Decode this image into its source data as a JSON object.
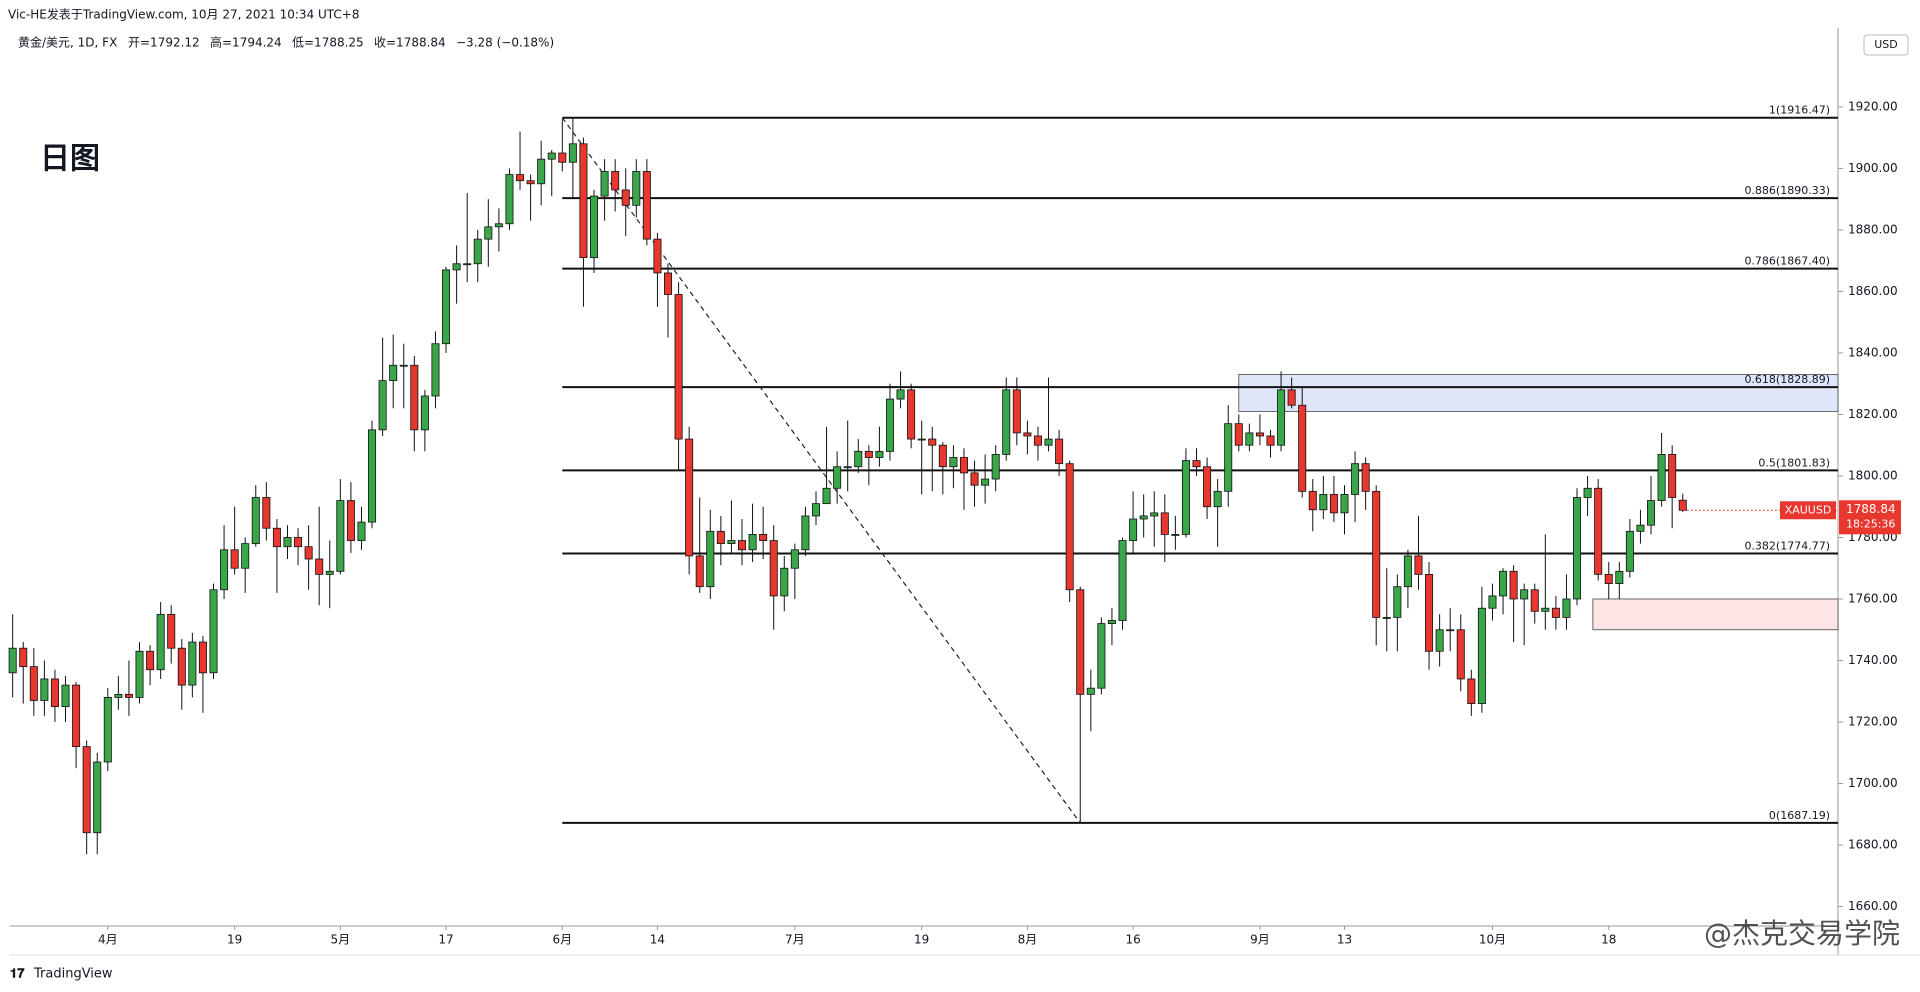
{
  "header": {
    "line1": "Vic-HE发表于TradingView.com, 10月 27, 2021 10:34 UTC+8",
    "symbol": "黄金/美元, 1D, FX",
    "open": "开=1792.12",
    "high": "高=1794.24",
    "low": "低=1788.25",
    "close": "收=1788.84",
    "change": "−3.28 (−0.18%)"
  },
  "chart_data": {
    "type": "candlestick",
    "annotation": "日图",
    "currency": "USD",
    "symbol_tag": "XAUUSD",
    "countdown": "18:25:36",
    "categories": [
      null,
      null,
      null,
      null,
      null,
      null,
      null,
      null,
      null,
      "4月",
      null,
      null,
      null,
      null,
      null,
      null,
      null,
      null,
      null,
      null,
      null,
      "19",
      null,
      null,
      null,
      null,
      null,
      null,
      null,
      null,
      null,
      "5月",
      null,
      null,
      null,
      null,
      null,
      null,
      null,
      null,
      null,
      "17",
      null,
      null,
      null,
      null,
      null,
      null,
      null,
      null,
      null,
      null,
      "6月",
      null,
      null,
      null,
      null,
      null,
      null,
      null,
      null,
      "14",
      null,
      null,
      null,
      null,
      null,
      null,
      null,
      null,
      null,
      null,
      null,
      null,
      "7月",
      null,
      null,
      null,
      null,
      null,
      null,
      null,
      null,
      null,
      null,
      null,
      "19",
      null,
      null,
      null,
      null,
      null,
      null,
      null,
      null,
      null,
      "8月",
      null,
      null,
      null,
      null,
      null,
      null,
      null,
      null,
      null,
      "16",
      null,
      null,
      null,
      null,
      null,
      null,
      null,
      null,
      null,
      null,
      null,
      "9月",
      null,
      null,
      null,
      null,
      null,
      null,
      null,
      "13",
      null,
      null,
      null,
      null,
      null,
      null,
      null,
      null,
      null,
      null,
      null,
      null,
      null,
      "10月",
      null,
      null,
      null,
      null,
      null,
      null,
      null,
      null,
      null,
      null,
      "18",
      null,
      null,
      null,
      null,
      null,
      null,
      null
    ],
    "ohlc": [
      [
        1736,
        1755,
        1728,
        1744
      ],
      [
        1744,
        1746,
        1726,
        1738
      ],
      [
        1738,
        1744,
        1722,
        1727
      ],
      [
        1727,
        1740,
        1722,
        1734
      ],
      [
        1734,
        1737,
        1720,
        1725
      ],
      [
        1725,
        1735,
        1720,
        1732
      ],
      [
        1732,
        1733,
        1705,
        1712
      ],
      [
        1712,
        1714,
        1677,
        1684
      ],
      [
        1684,
        1710,
        1677,
        1707
      ],
      [
        1707,
        1731,
        1704,
        1728
      ],
      [
        1728,
        1735,
        1724,
        1729
      ],
      [
        1729,
        1740,
        1722,
        1728
      ],
      [
        1728,
        1746,
        1726,
        1743
      ],
      [
        1743,
        1745,
        1732,
        1737
      ],
      [
        1737,
        1759,
        1734,
        1755
      ],
      [
        1755,
        1758,
        1739,
        1744
      ],
      [
        1744,
        1747,
        1724,
        1732
      ],
      [
        1732,
        1749,
        1728,
        1746
      ],
      [
        1746,
        1748,
        1723,
        1736
      ],
      [
        1736,
        1765,
        1734,
        1763
      ],
      [
        1763,
        1784,
        1760,
        1776
      ],
      [
        1776,
        1790,
        1768,
        1770
      ],
      [
        1770,
        1780,
        1762,
        1778
      ],
      [
        1778,
        1797,
        1777,
        1793
      ],
      [
        1793,
        1798,
        1779,
        1783
      ],
      [
        1783,
        1786,
        1762,
        1777
      ],
      [
        1777,
        1784,
        1773,
        1780
      ],
      [
        1780,
        1783,
        1771,
        1777
      ],
      [
        1777,
        1784,
        1763,
        1773
      ],
      [
        1773,
        1790,
        1758,
        1768
      ],
      [
        1768,
        1779,
        1757,
        1769
      ],
      [
        1769,
        1799,
        1768,
        1792
      ],
      [
        1792,
        1798,
        1775,
        1779
      ],
      [
        1779,
        1790,
        1776,
        1785
      ],
      [
        1785,
        1818,
        1783,
        1815
      ],
      [
        1815,
        1845,
        1813,
        1831
      ],
      [
        1831,
        1846,
        1822,
        1836
      ],
      [
        1836,
        1843,
        1822,
        1836
      ],
      [
        1836,
        1839,
        1808,
        1815
      ],
      [
        1815,
        1828,
        1808,
        1826
      ],
      [
        1826,
        1847,
        1822,
        1843
      ],
      [
        1843,
        1868,
        1840,
        1867
      ],
      [
        1867,
        1875,
        1856,
        1869
      ],
      [
        1869,
        1892,
        1863,
        1869
      ],
      [
        1869,
        1880,
        1863,
        1877
      ],
      [
        1877,
        1890,
        1868,
        1881
      ],
      [
        1881,
        1887,
        1873,
        1882
      ],
      [
        1882,
        1900,
        1880,
        1898
      ],
      [
        1898,
        1912,
        1893,
        1896
      ],
      [
        1896,
        1898,
        1883,
        1895
      ],
      [
        1895,
        1909,
        1888,
        1903
      ],
      [
        1903,
        1906,
        1891,
        1905
      ],
      [
        1905,
        1916,
        1899,
        1902
      ],
      [
        1902,
        1916.47,
        1890,
        1908
      ],
      [
        1908,
        1910,
        1855,
        1871
      ],
      [
        1871,
        1893,
        1866,
        1891
      ],
      [
        1891,
        1903,
        1883,
        1899
      ],
      [
        1899,
        1903,
        1886,
        1893
      ],
      [
        1893,
        1900,
        1878,
        1888
      ],
      [
        1888,
        1903,
        1884,
        1899
      ],
      [
        1899,
        1903,
        1875,
        1877
      ],
      [
        1877,
        1879,
        1855,
        1866
      ],
      [
        1866,
        1869,
        1845,
        1859
      ],
      [
        1859,
        1863,
        1802,
        1812
      ],
      [
        1812,
        1816,
        1768,
        1774
      ],
      [
        1774,
        1793,
        1762,
        1764
      ],
      [
        1764,
        1789,
        1760,
        1782
      ],
      [
        1782,
        1787,
        1771,
        1778
      ],
      [
        1778,
        1792,
        1775,
        1779
      ],
      [
        1779,
        1786,
        1771,
        1776
      ],
      [
        1776,
        1791,
        1772,
        1781
      ],
      [
        1781,
        1790,
        1773,
        1779
      ],
      [
        1779,
        1784,
        1750,
        1761
      ],
      [
        1761,
        1774,
        1756,
        1770
      ],
      [
        1770,
        1778,
        1760,
        1776
      ],
      [
        1776,
        1790,
        1774,
        1787
      ],
      [
        1787,
        1795,
        1784,
        1791
      ],
      [
        1791,
        1816,
        1791,
        1796
      ],
      [
        1796,
        1808,
        1791,
        1803
      ],
      [
        1803,
        1818,
        1795,
        1803
      ],
      [
        1803,
        1812,
        1801,
        1808
      ],
      [
        1808,
        1810,
        1797,
        1806
      ],
      [
        1806,
        1816,
        1803,
        1808
      ],
      [
        1808,
        1830,
        1805,
        1825
      ],
      [
        1825,
        1834,
        1822,
        1828
      ],
      [
        1828,
        1830,
        1809,
        1812
      ],
      [
        1812,
        1818,
        1794,
        1812
      ],
      [
        1812,
        1816,
        1795,
        1810
      ],
      [
        1810,
        1811,
        1794,
        1803
      ],
      [
        1803,
        1810,
        1796,
        1806
      ],
      [
        1806,
        1809,
        1789,
        1801
      ],
      [
        1801,
        1805,
        1790,
        1797
      ],
      [
        1797,
        1807,
        1791,
        1799
      ],
      [
        1799,
        1810,
        1795,
        1807
      ],
      [
        1807,
        1832,
        1805,
        1828
      ],
      [
        1828,
        1832,
        1810,
        1814
      ],
      [
        1814,
        1818,
        1807,
        1813
      ],
      [
        1813,
        1816,
        1805,
        1810
      ],
      [
        1810,
        1832,
        1808,
        1812
      ],
      [
        1812,
        1815,
        1800,
        1804
      ],
      [
        1804,
        1805,
        1759,
        1763
      ],
      [
        1763,
        1764,
        1687.19,
        1729
      ],
      [
        1729,
        1737,
        1717,
        1731
      ],
      [
        1731,
        1754,
        1729,
        1752
      ],
      [
        1752,
        1757,
        1745,
        1753
      ],
      [
        1753,
        1780,
        1750,
        1779
      ],
      [
        1779,
        1795,
        1775,
        1786
      ],
      [
        1786,
        1794,
        1780,
        1787
      ],
      [
        1787,
        1795,
        1777,
        1788
      ],
      [
        1788,
        1794,
        1772,
        1781
      ],
      [
        1781,
        1787,
        1776,
        1781
      ],
      [
        1781,
        1809,
        1780,
        1805
      ],
      [
        1805,
        1809,
        1800,
        1803
      ],
      [
        1803,
        1806,
        1786,
        1790
      ],
      [
        1790,
        1799,
        1777,
        1795
      ],
      [
        1795,
        1823,
        1790,
        1817
      ],
      [
        1817,
        1820,
        1808,
        1810
      ],
      [
        1810,
        1817,
        1808,
        1814
      ],
      [
        1814,
        1820,
        1810,
        1813
      ],
      [
        1813,
        1815,
        1806,
        1810
      ],
      [
        1810,
        1834,
        1808,
        1828
      ],
      [
        1828,
        1832,
        1822,
        1823
      ],
      [
        1823,
        1829,
        1793,
        1795
      ],
      [
        1795,
        1799,
        1782,
        1789
      ],
      [
        1789,
        1800,
        1786,
        1794
      ],
      [
        1794,
        1800,
        1785,
        1788
      ],
      [
        1788,
        1797,
        1781,
        1794
      ],
      [
        1794,
        1808,
        1785,
        1804
      ],
      [
        1804,
        1806,
        1789,
        1795
      ],
      [
        1795,
        1797,
        1745,
        1754
      ],
      [
        1754,
        1770,
        1743,
        1754
      ],
      [
        1754,
        1768,
        1743,
        1764
      ],
      [
        1764,
        1776,
        1757,
        1774
      ],
      [
        1774,
        1787,
        1763,
        1768
      ],
      [
        1768,
        1772,
        1737,
        1743
      ],
      [
        1743,
        1755,
        1738,
        1750
      ],
      [
        1750,
        1757,
        1743,
        1750
      ],
      [
        1750,
        1755,
        1730,
        1734
      ],
      [
        1734,
        1737,
        1722,
        1726
      ],
      [
        1726,
        1764,
        1723,
        1757
      ],
      [
        1757,
        1765,
        1753,
        1761
      ],
      [
        1761,
        1770,
        1755,
        1769
      ],
      [
        1769,
        1771,
        1746,
        1760
      ],
      [
        1760,
        1765,
        1745,
        1763
      ],
      [
        1763,
        1765,
        1752,
        1756
      ],
      [
        1756,
        1781,
        1750,
        1757
      ],
      [
        1757,
        1761,
        1750,
        1754
      ],
      [
        1754,
        1768,
        1750,
        1760
      ],
      [
        1760,
        1796,
        1758,
        1793
      ],
      [
        1793,
        1800,
        1787,
        1796
      ],
      [
        1796,
        1799,
        1766,
        1768
      ],
      [
        1768,
        1772,
        1760,
        1765
      ],
      [
        1765,
        1772,
        1760,
        1769
      ],
      [
        1769,
        1786,
        1767,
        1782
      ],
      [
        1782,
        1789,
        1778,
        1784
      ],
      [
        1784,
        1800,
        1781,
        1792
      ],
      [
        1792,
        1814,
        1790,
        1807
      ],
      [
        1807,
        1810,
        1783,
        1793
      ],
      [
        1792.12,
        1794.24,
        1788.25,
        1788.84
      ]
    ],
    "colors": {
      "up": "#3aa64a",
      "down": "#e8372f"
    },
    "ylim": [
      1654,
      1945
    ],
    "yticks": [
      {
        "value": 1660,
        "label": "1660.00"
      },
      {
        "value": 1680,
        "label": "1680.00"
      },
      {
        "value": 1700,
        "label": "1700.00"
      },
      {
        "value": 1720,
        "label": "1720.00"
      },
      {
        "value": 1740,
        "label": "1740.00"
      },
      {
        "value": 1760,
        "label": "1760.00"
      },
      {
        "value": 1780,
        "label": "1780.00"
      },
      {
        "value": 1800,
        "label": "1800.00"
      },
      {
        "value": 1820,
        "label": "1820.00"
      },
      {
        "value": 1840,
        "label": "1840.00"
      },
      {
        "value": 1860,
        "label": "1860.00"
      },
      {
        "value": 1880,
        "label": "1880.00"
      },
      {
        "value": 1900,
        "label": "1900.00"
      },
      {
        "value": 1920,
        "label": "1920.00"
      }
    ],
    "fib": [
      {
        "value": 1916.47,
        "label": "1(1916.47)"
      },
      {
        "value": 1890.33,
        "label": "0.886(1890.33)"
      },
      {
        "value": 1867.4,
        "label": "0.786(1867.40)"
      },
      {
        "value": 1828.89,
        "label": "0.618(1828.89)"
      },
      {
        "value": 1801.83,
        "label": "0.5(1801.83)"
      },
      {
        "value": 1774.77,
        "label": "0.382(1774.77)"
      },
      {
        "value": 1687.19,
        "label": "0(1687.19)"
      }
    ],
    "zones": [
      {
        "range": [
          1821,
          1833
        ],
        "color": "#dfe6f9"
      },
      {
        "range": [
          1750,
          1760
        ],
        "color": "#fde5e5"
      }
    ]
  },
  "watermark": "@杰克交易学院",
  "brand": "TradingView"
}
